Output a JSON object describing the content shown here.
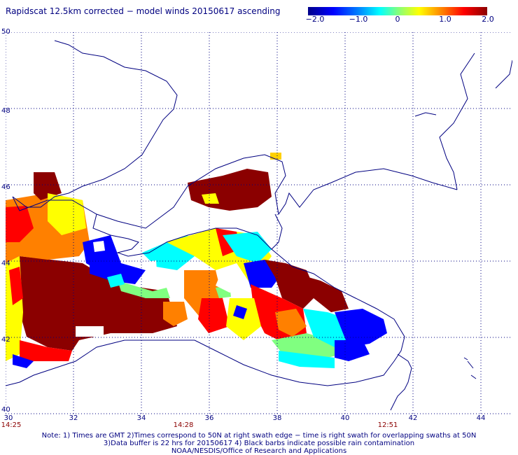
{
  "title": "Rapidscat 12.5km corrected − model winds 20150617 ascending",
  "colorbar": {
    "labels": [
      "−2.0",
      "−1.0",
      "0",
      "1.0",
      "2.0"
    ],
    "values": [
      -2.0,
      -1.0,
      0,
      1.0,
      2.0
    ],
    "colors": [
      "#00008b",
      "#0000ff",
      "#00ffff",
      "#80ff80",
      "#ffff00",
      "#ff8000",
      "#ff0000",
      "#8b0000"
    ]
  },
  "latitudes": [
    "50",
    "48",
    "46",
    "44",
    "42",
    "40"
  ],
  "longitudes": [
    "30",
    "32",
    "34",
    "36",
    "38",
    "40",
    "42",
    "44"
  ],
  "times": {
    "left": "14:25",
    "middle": "14:28",
    "right": "12:51"
  },
  "footer": {
    "line1": "Note: 1) Times are GMT 2)Times correspond to 50N at right swath edge − time is right swath for overlapping swaths at 50N",
    "line2": "3)Data buffer is 22 hrs for 20150617 4) Black barbs indicate possible rain contamination",
    "line3": "NOAA/NESDIS/Office of Research and Applications"
  }
}
